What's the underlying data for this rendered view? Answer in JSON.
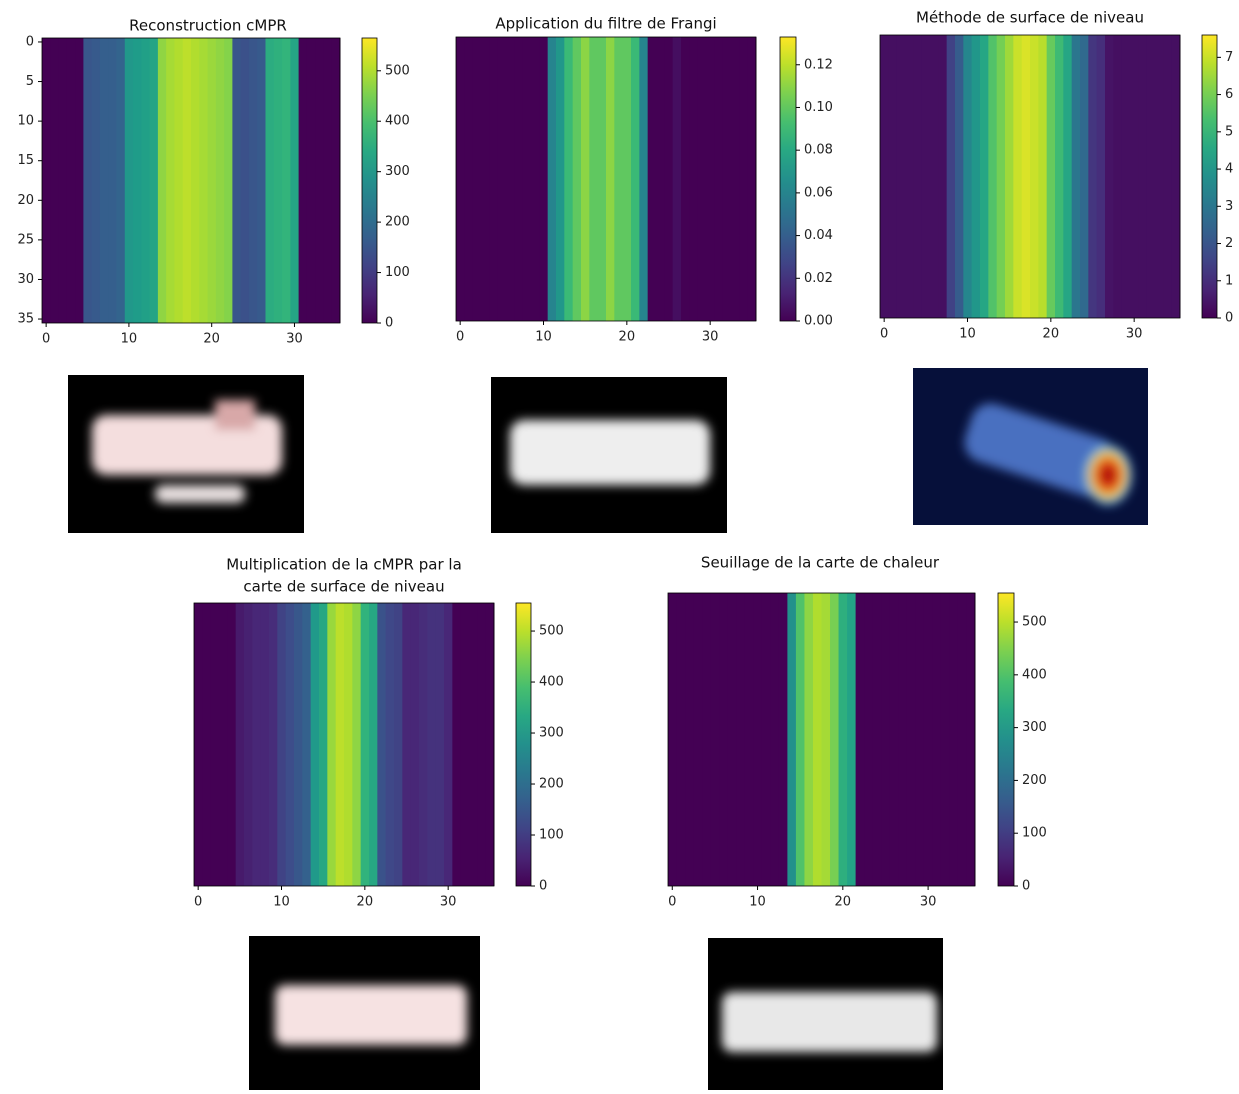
{
  "chart_data": [
    {
      "type": "heatmap",
      "title": "Reconstruction cMPR",
      "x": [
        0,
        1,
        2,
        3,
        4,
        5,
        6,
        7,
        8,
        9,
        10,
        11,
        12,
        13,
        14,
        15,
        16,
        17,
        18,
        19,
        20,
        21,
        22,
        23,
        24,
        25,
        26,
        27,
        28,
        29,
        30,
        31,
        32,
        33,
        34,
        35
      ],
      "values": [
        0,
        0,
        0,
        0,
        0,
        150,
        160,
        170,
        170,
        180,
        300,
        310,
        320,
        330,
        470,
        490,
        500,
        510,
        500,
        490,
        480,
        470,
        460,
        150,
        140,
        150,
        160,
        350,
        360,
        370,
        330,
        0,
        0,
        0,
        0,
        0
      ],
      "xlim": [
        -0.5,
        35.5
      ],
      "ylim": [
        35.5,
        -0.5
      ],
      "xticks": [
        0,
        10,
        20,
        30
      ],
      "yticks": [
        0,
        5,
        10,
        15,
        20,
        25,
        30,
        35
      ],
      "colorbar": {
        "lim": [
          0,
          565
        ],
        "ticks": [
          0,
          100,
          200,
          300,
          400,
          500
        ]
      }
    },
    {
      "type": "heatmap",
      "title": "Application du filtre de Frangi",
      "x": [
        0,
        1,
        2,
        3,
        4,
        5,
        6,
        7,
        8,
        9,
        10,
        11,
        12,
        13,
        14,
        15,
        16,
        17,
        18,
        19,
        20,
        21,
        22,
        23,
        24,
        25,
        26,
        27,
        28,
        29,
        30,
        31,
        32,
        33,
        34,
        35
      ],
      "values": [
        0,
        0,
        0,
        0,
        0,
        0,
        0,
        0,
        0,
        0,
        0,
        0.06,
        0.07,
        0.09,
        0.1,
        0.11,
        0.1,
        0.1,
        0.11,
        0.1,
        0.1,
        0.09,
        0.06,
        0,
        0,
        0,
        0.005,
        0,
        0,
        0,
        0,
        0,
        0,
        0,
        0,
        0
      ],
      "xlim": [
        -0.5,
        35.5
      ],
      "xticks": [
        0,
        10,
        20,
        30
      ],
      "colorbar": {
        "lim": [
          0,
          0.133
        ],
        "ticks": [
          {
            "value": 0,
            "label": "0.00"
          },
          0.02,
          0.04,
          0.06,
          0.08,
          {
            "value": 0.1,
            "label": "0.10"
          },
          0.12
        ]
      }
    },
    {
      "type": "heatmap",
      "title": "Méthode de surface de niveau",
      "x": [
        0,
        1,
        2,
        3,
        4,
        5,
        6,
        7,
        8,
        9,
        10,
        11,
        12,
        13,
        14,
        15,
        16,
        17,
        18,
        19,
        20,
        21,
        22,
        23,
        24,
        25,
        26,
        27,
        28,
        29,
        30,
        31,
        32,
        33,
        34,
        35
      ],
      "values": [
        0.3,
        0.3,
        0.3,
        0.3,
        0.3,
        0.3,
        0.3,
        0.3,
        1.5,
        2.2,
        3.5,
        4,
        4.5,
        5.5,
        6,
        6.5,
        7,
        7.2,
        7,
        6.8,
        5.8,
        5.2,
        4.5,
        3,
        2.6,
        1.2,
        1,
        0.4,
        0.3,
        0.3,
        0.3,
        0.3,
        0.3,
        0.3,
        0.3,
        0.3
      ],
      "xlim": [
        -0.5,
        35.5
      ],
      "xticks": [
        0,
        10,
        20,
        30
      ],
      "colorbar": {
        "lim": [
          0,
          7.6
        ],
        "ticks": [
          0,
          1,
          2,
          3,
          4,
          5,
          6,
          7
        ]
      }
    },
    {
      "type": "heatmap",
      "title": [
        "Multiplication de la cMPR par la",
        "carte de surface de niveau"
      ],
      "x": [
        0,
        1,
        2,
        3,
        4,
        5,
        6,
        7,
        8,
        9,
        10,
        11,
        12,
        13,
        14,
        15,
        16,
        17,
        18,
        19,
        20,
        21,
        22,
        23,
        24,
        25,
        26,
        27,
        28,
        29,
        30,
        31,
        32,
        33,
        34,
        35
      ],
      "values": [
        0,
        0,
        0,
        0,
        0,
        40,
        50,
        60,
        60,
        70,
        110,
        130,
        150,
        170,
        300,
        330,
        470,
        500,
        490,
        460,
        360,
        330,
        140,
        120,
        110,
        60,
        60,
        70,
        80,
        80,
        60,
        0,
        0,
        0,
        0,
        0
      ],
      "xlim": [
        -0.5,
        35.5
      ],
      "xticks": [
        0,
        10,
        20,
        30
      ],
      "colorbar": {
        "lim": [
          0,
          555
        ],
        "ticks": [
          0,
          100,
          200,
          300,
          400,
          500
        ]
      }
    },
    {
      "type": "heatmap",
      "title": "Seuillage de la carte de chaleur",
      "x": [
        0,
        1,
        2,
        3,
        4,
        5,
        6,
        7,
        8,
        9,
        10,
        11,
        12,
        13,
        14,
        15,
        16,
        17,
        18,
        19,
        20,
        21,
        22,
        23,
        24,
        25,
        26,
        27,
        28,
        29,
        30,
        31,
        32,
        33,
        34,
        35
      ],
      "values": [
        0,
        0,
        0,
        0,
        0,
        0,
        0,
        0,
        0,
        0,
        0,
        0,
        0,
        0,
        280,
        400,
        460,
        490,
        480,
        440,
        350,
        320,
        0,
        0,
        0,
        0,
        0,
        0,
        0,
        0,
        0,
        0,
        0,
        0,
        0,
        0
      ],
      "xlim": [
        -0.5,
        35.5
      ],
      "xticks": [
        0,
        10,
        20,
        30
      ],
      "colorbar": {
        "lim": [
          0,
          555
        ],
        "ticks": [
          0,
          100,
          200,
          300,
          400,
          500
        ]
      }
    }
  ]
}
